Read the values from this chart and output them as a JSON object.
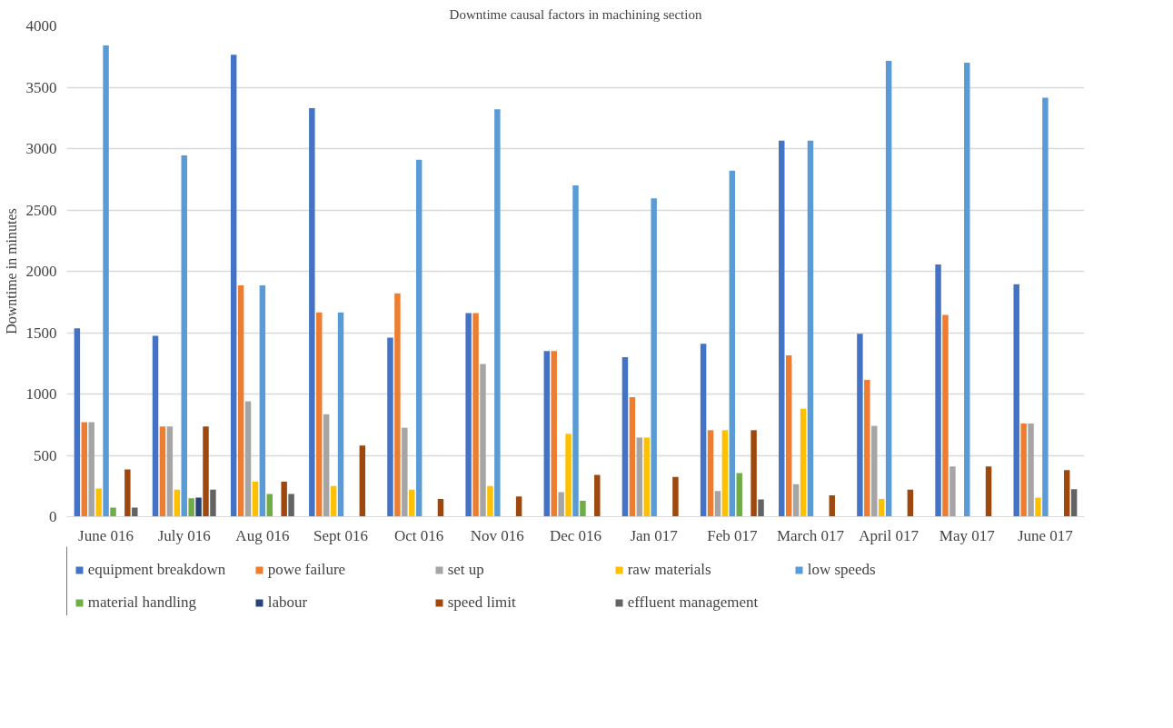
{
  "chart_data": {
    "type": "bar",
    "title": "Downtime causal factors in machining section",
    "ylabel": "Downtime in minutes",
    "categories": [
      "June 016",
      "July 016",
      "Aug 016",
      "Sept 016",
      "Oct 016",
      "Nov 016",
      "Dec 016",
      "Jan 017",
      "Feb 017",
      "March 017",
      "April 017",
      "May 017",
      "June 017"
    ],
    "series": [
      {
        "name": "equipment breakdown",
        "color": "#4472c4",
        "values": [
          1535,
          1475,
          3765,
          3330,
          1460,
          1660,
          1350,
          1300,
          1410,
          3065,
          1490,
          2055,
          1895
        ]
      },
      {
        "name": "powe failure",
        "color": "#ed7d31",
        "values": [
          770,
          735,
          1885,
          1665,
          1820,
          1660,
          1350,
          975,
          705,
          1315,
          1115,
          1645,
          760
        ]
      },
      {
        "name": "set up",
        "color": "#a5a5a5",
        "values": [
          770,
          735,
          940,
          835,
          725,
          1245,
          200,
          645,
          210,
          265,
          740,
          410,
          760
        ]
      },
      {
        "name": "raw materials",
        "color": "#ffc000",
        "values": [
          230,
          220,
          285,
          250,
          220,
          250,
          675,
          645,
          705,
          880,
          145,
          null,
          155
        ]
      },
      {
        "name": "low speeds",
        "color": "#5b9bd5",
        "values": [
          3840,
          2945,
          1885,
          1665,
          2910,
          3320,
          2700,
          2595,
          2820,
          3065,
          3715,
          3700,
          3415
        ]
      },
      {
        "name": "material handling",
        "color": "#70ad47",
        "values": [
          75,
          150,
          185,
          null,
          null,
          null,
          130,
          null,
          355,
          null,
          null,
          null,
          null
        ]
      },
      {
        "name": "labour",
        "color": "#264478",
        "values": [
          null,
          155,
          null,
          null,
          null,
          null,
          null,
          null,
          null,
          null,
          null,
          null,
          null
        ]
      },
      {
        "name": "speed limit",
        "color": "#9e480e",
        "values": [
          385,
          735,
          285,
          580,
          145,
          165,
          340,
          325,
          705,
          175,
          220,
          410,
          380
        ]
      },
      {
        "name": "effluent management",
        "color": "#636363",
        "values": [
          75,
          220,
          185,
          null,
          null,
          null,
          null,
          null,
          140,
          null,
          null,
          null,
          225
        ]
      }
    ],
    "ylim": [
      0,
      4000
    ],
    "yticks": [
      0,
      500,
      1000,
      1500,
      2000,
      2500,
      3000,
      3500,
      4000
    ],
    "grid": "y",
    "legend": "bottom"
  }
}
